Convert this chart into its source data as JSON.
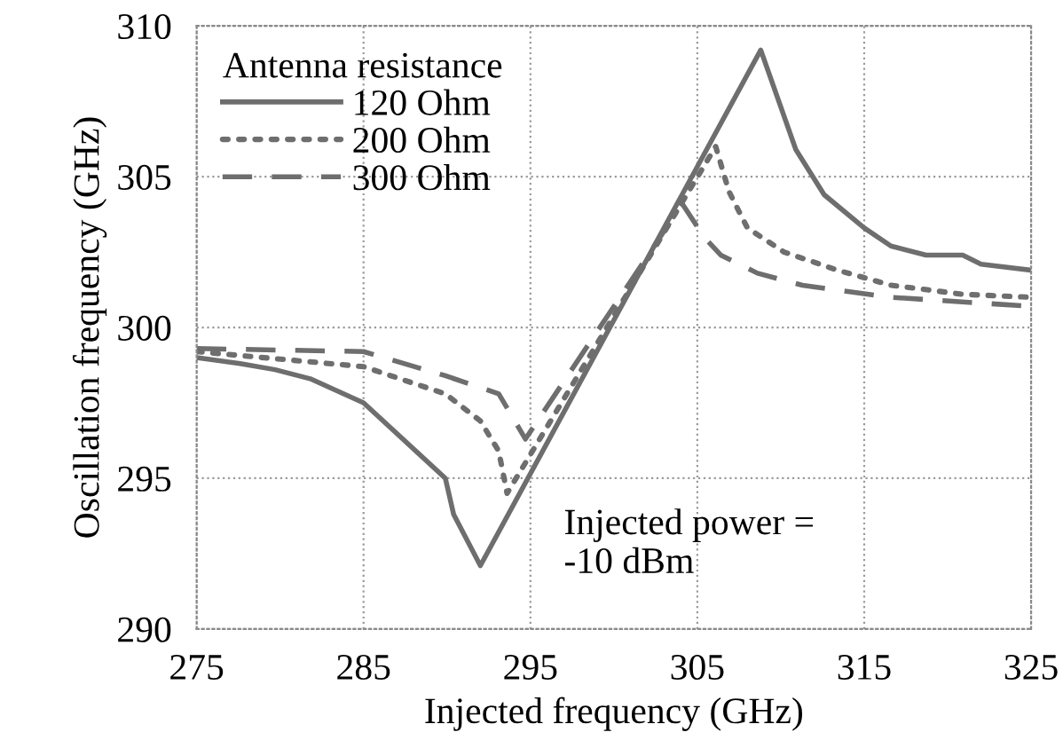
{
  "chart_data": {
    "type": "line",
    "xlabel": "Injected frequency (GHz)",
    "ylabel": "Oscillation frequency (GHz)",
    "legend_title": "Antenna resistance",
    "legend": "top left",
    "grid": true,
    "marker": "none",
    "xlim": [
      275,
      325
    ],
    "xticks": [
      275,
      285,
      295,
      305,
      315,
      325
    ],
    "ylim": [
      290,
      310
    ],
    "yticks": [
      290,
      295,
      300,
      305,
      310
    ],
    "annotations": [
      "Injected power =\n-10 dBm"
    ],
    "series": [
      {
        "name": "120 Ohm",
        "color": "#6e6e6e",
        "line_style": "solid",
        "x": [
          275,
          277.6,
          279.7,
          281.8,
          285,
          289.9,
          290.4,
          292,
          308.8,
          310.9,
          312.6,
          315,
          316.6,
          318.7,
          320.9,
          322,
          325
        ],
        "values": [
          299.0,
          298.8,
          298.6,
          298.3,
          297.5,
          295.0,
          293.8,
          292.1,
          309.2,
          305.9,
          304.4,
          303.3,
          302.7,
          302.4,
          302.4,
          302.1,
          301.9
        ]
      },
      {
        "name": "200 Ohm",
        "color": "#6e6e6e",
        "line_style": "dotted",
        "x": [
          275,
          285,
          289.9,
          292,
          293.1,
          293.6,
          306.1,
          306.9,
          308.0,
          310.2,
          313.4,
          316.6,
          320.9,
          325
        ],
        "values": [
          299.2,
          298.7,
          297.8,
          296.9,
          295.9,
          294.5,
          306.0,
          304.5,
          303.3,
          302.5,
          301.9,
          301.4,
          301.1,
          301.0
        ]
      },
      {
        "name": "300 Ohm",
        "color": "#6e6e6e",
        "line_style": "dashed",
        "x": [
          275,
          285,
          289.9,
          293.1,
          294.7,
          304.1,
          305.4,
          306.4,
          308.6,
          311.3,
          316.6,
          325
        ],
        "values": [
          299.3,
          299.2,
          298.4,
          297.8,
          296.3,
          304.1,
          303.0,
          302.4,
          301.8,
          301.4,
          301.0,
          300.7
        ]
      }
    ]
  }
}
